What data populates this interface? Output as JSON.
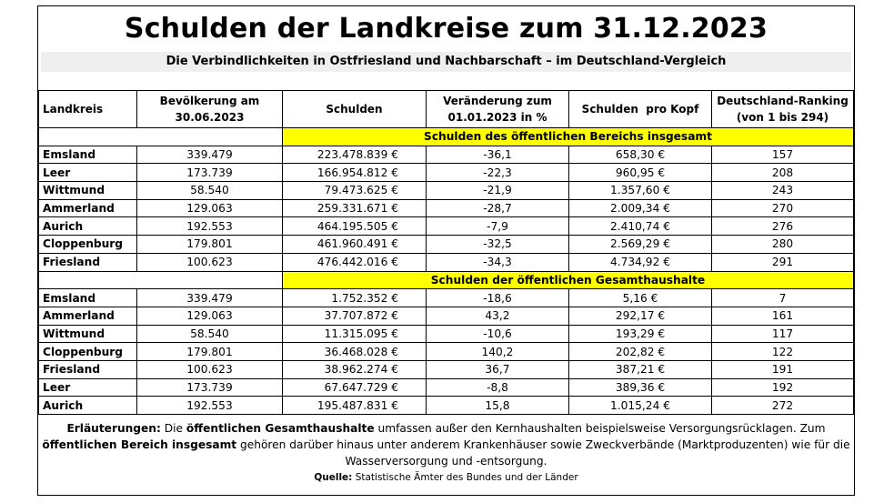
{
  "title": "Schulden der Landkreise zum 31.12.2023",
  "subtitle": "Die Verbindlichkeiten in Ostfriesland und Nachbarschaft – im Deutschland-Vergleich",
  "headers": {
    "landkreis": "Landkreis",
    "bev_line1": "Bevölkerung am",
    "bev_line2": "30.06.2023",
    "schulden": "Schulden",
    "ver_line1": "Veränderung zum",
    "ver_line2": "01.01.2023 in %",
    "prokopf": "Schulden  pro Kopf",
    "rank_line1": "Deutschland-Ranking",
    "rank_line2": "(von 1 bis 294)"
  },
  "section1": {
    "label": "Schulden des öffentlichen Bereichs insgesamt",
    "rows": [
      {
        "name": "Emsland",
        "pop": "339.479",
        "debt": "223.478.839 €",
        "change": "-36,1",
        "percap": "658,30 €",
        "rank": "157"
      },
      {
        "name": "Leer",
        "pop": "173.739",
        "debt": "166.954.812 €",
        "change": "-22,3",
        "percap": "960,95 €",
        "rank": "208"
      },
      {
        "name": "Wittmund",
        "pop": "58.540",
        "debt": "79.473.625 €",
        "change": "-21,9",
        "percap": "1.357,60 €",
        "rank": "243"
      },
      {
        "name": "Ammerland",
        "pop": "129.063",
        "debt": "259.331.671 €",
        "change": "-28,7",
        "percap": "2.009,34 €",
        "rank": "270"
      },
      {
        "name": "Aurich",
        "pop": "192.553",
        "debt": "464.195.505 €",
        "change": "-7,9",
        "percap": "2.410,74 €",
        "rank": "276"
      },
      {
        "name": "Cloppenburg",
        "pop": "179.801",
        "debt": "461.960.491 €",
        "change": "-32,5",
        "percap": "2.569,29 €",
        "rank": "280"
      },
      {
        "name": "Friesland",
        "pop": "100.623",
        "debt": "476.442.016 €",
        "change": "-34,3",
        "percap": "4.734,92 €",
        "rank": "291"
      }
    ]
  },
  "section2": {
    "label": "Schulden der öffentlichen Gesamthaushalte",
    "rows": [
      {
        "name": "Emsland",
        "pop": "339.479",
        "debt": "1.752.352 €",
        "change": "-18,6",
        "percap": "5,16 €",
        "rank": "7"
      },
      {
        "name": "Ammerland",
        "pop": "129.063",
        "debt": "37.707.872 €",
        "change": "43,2",
        "percap": "292,17 €",
        "rank": "161"
      },
      {
        "name": "Wittmund",
        "pop": "58.540",
        "debt": "11.315.095 €",
        "change": "-10,6",
        "percap": "193,29 €",
        "rank": "117"
      },
      {
        "name": "Cloppenburg",
        "pop": "179.801",
        "debt": "36.468.028 €",
        "change": "140,2",
        "percap": "202,82 €",
        "rank": "122"
      },
      {
        "name": "Friesland",
        "pop": "100.623",
        "debt": "38.962.274 €",
        "change": "36,7",
        "percap": "387,21 €",
        "rank": "191"
      },
      {
        "name": "Leer",
        "pop": "173.739",
        "debt": "67.647.729 €",
        "change": "-8,8",
        "percap": "389,36 €",
        "rank": "192"
      },
      {
        "name": "Aurich",
        "pop": "192.553",
        "debt": "195.487.831 €",
        "change": "15,8",
        "percap": "1.015,24 €",
        "rank": "272"
      }
    ]
  },
  "notes": {
    "t1": "Erläuterungen:",
    "t2": " Die ",
    "t3": "öffentlichen Gesamthaushalte",
    "t4": " umfassen außer den Kernhaushalten beispielsweise Versorgungsrücklagen. Zum ",
    "t5": "öffentlichen Bereich insgesamt",
    "t6": " gehören darüber hinaus unter anderem Krankenhäuser sowie Zweckverbände (Marktproduzenten) wie für die Wasserversorgung und -entsorgung."
  },
  "source": {
    "label": "Quelle:",
    "text": " Statistische Ämter des Bundes und der Länder"
  },
  "colors": {
    "section_highlight": "#ffff00",
    "subtitle_bg": "#efefef"
  }
}
